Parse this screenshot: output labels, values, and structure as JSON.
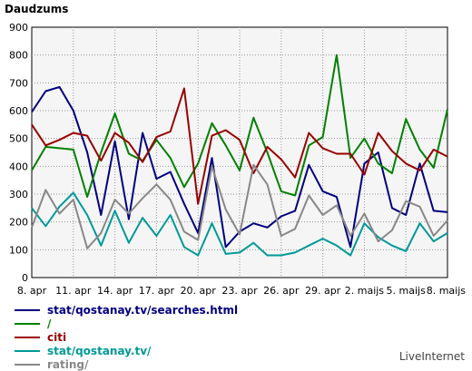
{
  "chart_data": {
    "type": "line",
    "ylabel": "Daudzums",
    "ylim": [
      0,
      900
    ],
    "yticks": [
      0,
      100,
      200,
      300,
      400,
      500,
      600,
      700,
      800,
      900
    ],
    "x_tick_labels": [
      "8. apr",
      "11. apr",
      "14. apr",
      "17. apr",
      "20. apr",
      "23. apr",
      "26. apr",
      "29. apr",
      "2. maijs",
      "5. maijs",
      "8. maijs"
    ],
    "x_tick_index": [
      0,
      3,
      6,
      9,
      12,
      15,
      18,
      21,
      24,
      27,
      30
    ],
    "x_count": 31,
    "grid": true,
    "legend_position": "bottom-left",
    "series": [
      {
        "name": "stat/qostanay.tv/searches.html",
        "color": "#000080",
        "values": [
          595,
          670,
          685,
          600,
          450,
          225,
          490,
          210,
          520,
          355,
          380,
          265,
          160,
          430,
          110,
          165,
          195,
          180,
          220,
          240,
          405,
          310,
          290,
          110,
          410,
          450,
          250,
          225,
          410,
          240,
          235
        ]
      },
      {
        "name": "/",
        "color": "#008000",
        "values": [
          385,
          470,
          465,
          460,
          290,
          450,
          590,
          445,
          420,
          495,
          430,
          325,
          410,
          555,
          475,
          385,
          575,
          450,
          310,
          295,
          475,
          505,
          800,
          430,
          500,
          410,
          375,
          570,
          460,
          395,
          605
        ]
      },
      {
        "name": "citi",
        "color": "#990000",
        "values": [
          550,
          475,
          495,
          520,
          510,
          420,
          520,
          485,
          415,
          505,
          525,
          680,
          265,
          510,
          530,
          495,
          375,
          470,
          425,
          360,
          520,
          465,
          445,
          445,
          370,
          520,
          455,
          410,
          385,
          460,
          435
        ]
      },
      {
        "name": "stat/qostanay.tv/",
        "color": "#009999",
        "values": [
          250,
          185,
          255,
          305,
          225,
          115,
          240,
          125,
          215,
          150,
          225,
          110,
          80,
          195,
          85,
          90,
          125,
          80,
          80,
          90,
          115,
          140,
          115,
          80,
          195,
          145,
          115,
          95,
          195,
          130,
          160
        ]
      },
      {
        "name": "rating/",
        "color": "#888888",
        "values": [
          180,
          315,
          230,
          280,
          105,
          160,
          280,
          230,
          285,
          335,
          280,
          165,
          135,
          400,
          245,
          155,
          405,
          335,
          150,
          175,
          295,
          225,
          260,
          150,
          230,
          130,
          170,
          275,
          255,
          150,
          205
        ]
      }
    ]
  },
  "brand": "LiveInternet"
}
